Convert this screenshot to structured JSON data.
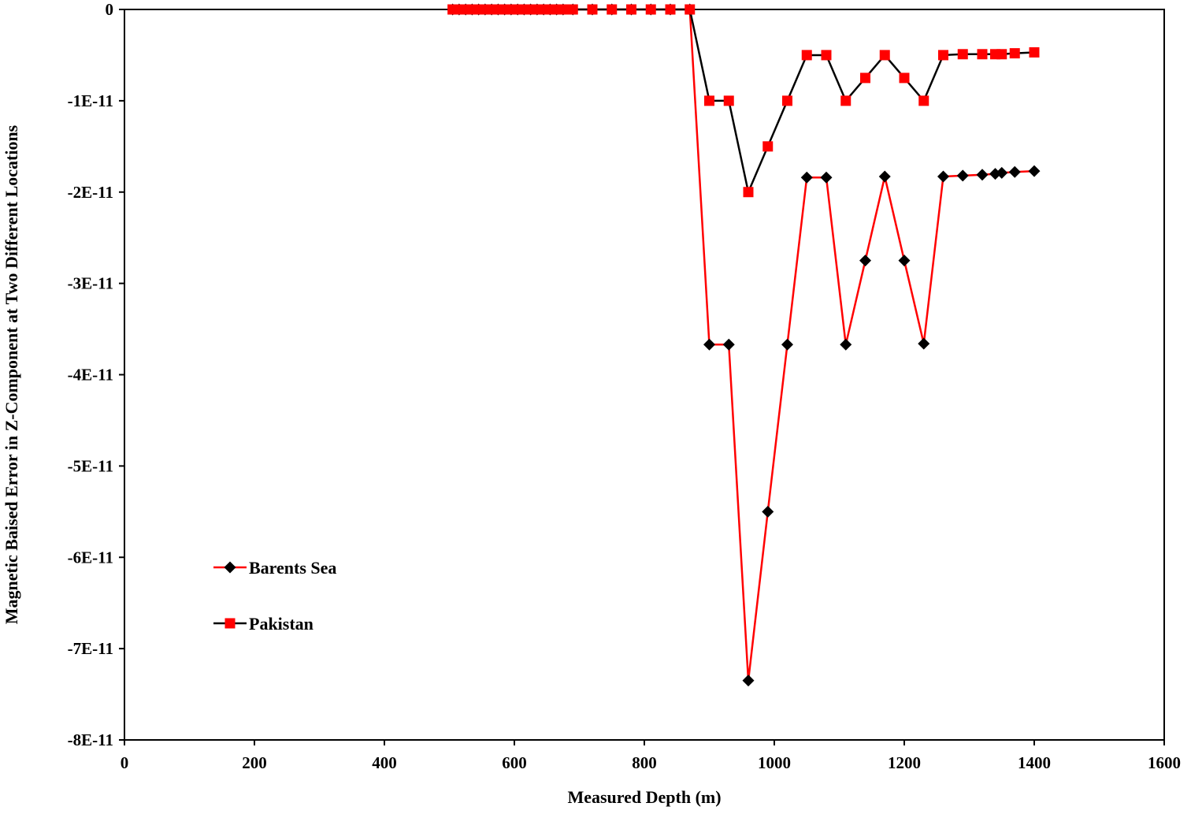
{
  "chart_data": {
    "type": "line",
    "title": "",
    "xlabel": "Measured Depth (m)",
    "ylabel": "Magnetic Baised Error in Z-Component at Two Different Locations",
    "xlim": [
      0,
      1600
    ],
    "ylim": [
      -8e-11,
      0
    ],
    "xticks": [
      0,
      200,
      400,
      600,
      800,
      1000,
      1200,
      1400,
      1600
    ],
    "xtick_labels": [
      "0",
      "200",
      "400",
      "600",
      "800",
      "1000",
      "1200",
      "1400",
      "1600"
    ],
    "yticks": [
      0,
      -1e-11,
      -2e-11,
      -3e-11,
      -4e-11,
      -5e-11,
      -6e-11,
      -7e-11,
      -8e-11
    ],
    "ytick_labels": [
      "0",
      "-1E-11",
      "-2E-11",
      "-3E-11",
      "-4E-11",
      "-5E-11",
      "-6E-11",
      "-7E-11",
      "-8E-11"
    ],
    "grid": false,
    "legend_position": "lower-left",
    "series": [
      {
        "name": "Barents Sea",
        "line_color": "#ff0000",
        "marker_color": "#000000",
        "marker": "diamond",
        "x": [
          505,
          515,
          525,
          535,
          545,
          555,
          565,
          575,
          585,
          595,
          605,
          615,
          625,
          635,
          645,
          655,
          665,
          675,
          690,
          720,
          750,
          780,
          810,
          840,
          870,
          900,
          930,
          960,
          990,
          1020,
          1050,
          1080,
          1110,
          1140,
          1170,
          1200,
          1230,
          1260,
          1290,
          1320,
          1340,
          1350,
          1370,
          1400
        ],
        "y": [
          0,
          0,
          0,
          0,
          0,
          0,
          0,
          0,
          0,
          0,
          0,
          0,
          0,
          0,
          0,
          0,
          0,
          0,
          0,
          0,
          0,
          0,
          0,
          0,
          0,
          -3.67e-11,
          -3.67e-11,
          -7.35e-11,
          -5.5e-11,
          -3.67e-11,
          -1.84e-11,
          -1.84e-11,
          -3.67e-11,
          -2.75e-11,
          -1.83e-11,
          -2.75e-11,
          -3.66e-11,
          -1.83e-11,
          -1.82e-11,
          -1.81e-11,
          -1.8e-11,
          -1.79e-11,
          -1.78e-11,
          -1.77e-11
        ]
      },
      {
        "name": "Pakistan",
        "line_color": "#000000",
        "marker_color": "#ff0000",
        "marker": "square",
        "x": [
          505,
          515,
          525,
          535,
          545,
          555,
          565,
          575,
          585,
          595,
          605,
          615,
          625,
          635,
          645,
          655,
          665,
          675,
          690,
          720,
          750,
          780,
          810,
          840,
          870,
          900,
          930,
          960,
          990,
          1020,
          1050,
          1080,
          1110,
          1140,
          1170,
          1200,
          1230,
          1260,
          1290,
          1320,
          1340,
          1350,
          1370,
          1400
        ],
        "y": [
          0,
          0,
          0,
          0,
          0,
          0,
          0,
          0,
          0,
          0,
          0,
          0,
          0,
          0,
          0,
          0,
          0,
          0,
          0,
          0,
          0,
          0,
          0,
          0,
          0,
          -1e-11,
          -1e-11,
          -2e-11,
          -1.5e-11,
          -1e-11,
          -5e-12,
          -5e-12,
          -1e-11,
          -7.5e-12,
          -5e-12,
          -7.5e-12,
          -1e-11,
          -5e-12,
          -4.9e-12,
          -4.9e-12,
          -4.9e-12,
          -4.9e-12,
          -4.8e-12,
          -4.7e-12
        ]
      }
    ]
  }
}
